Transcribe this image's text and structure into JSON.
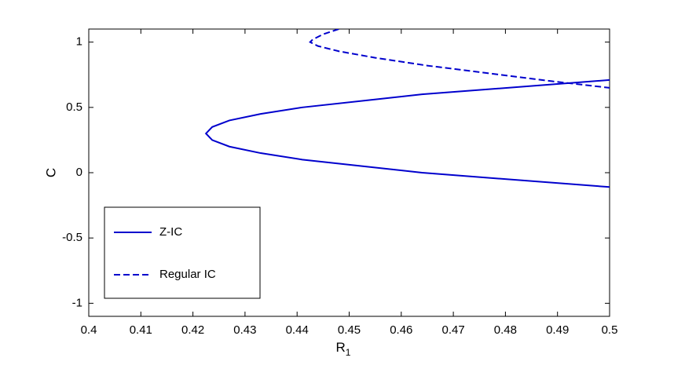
{
  "chart_data": {
    "type": "line",
    "xlabel": "R",
    "xlabel_subscript": "1",
    "ylabel": "C",
    "xlim": [
      0.4,
      0.5
    ],
    "xticks": [
      0.4,
      0.41,
      0.42,
      0.43,
      0.44,
      0.45,
      0.46,
      0.47,
      0.48,
      0.49,
      0.5
    ],
    "ylim": [
      -1.1,
      1.1
    ],
    "yticks": [
      -1,
      -0.5,
      0,
      0.5,
      1
    ],
    "grid": false,
    "legend": "lower left",
    "series": [
      {
        "name": "Z-IC",
        "color": "#0000cd",
        "dash": "solid",
        "x": [
          0.5,
          0.464,
          0.441,
          0.433,
          0.427,
          0.4237,
          0.4225,
          0.4237,
          0.427,
          0.433,
          0.441,
          0.464,
          0.5
        ],
        "values": [
          0.71,
          0.6,
          0.5,
          0.45,
          0.4,
          0.35,
          0.3,
          0.25,
          0.2,
          0.15,
          0.1,
          0,
          -0.11
        ]
      },
      {
        "name": "Regular IC",
        "color": "#0000cd",
        "dash": "dashed",
        "x": [
          0.448,
          0.445,
          0.443,
          0.4425,
          0.444,
          0.448,
          0.455,
          0.465,
          0.477,
          0.489,
          0.5
        ],
        "values": [
          1.1,
          1.06,
          1.02,
          1.0,
          0.97,
          0.93,
          0.88,
          0.82,
          0.76,
          0.7,
          0.65
        ]
      }
    ]
  }
}
